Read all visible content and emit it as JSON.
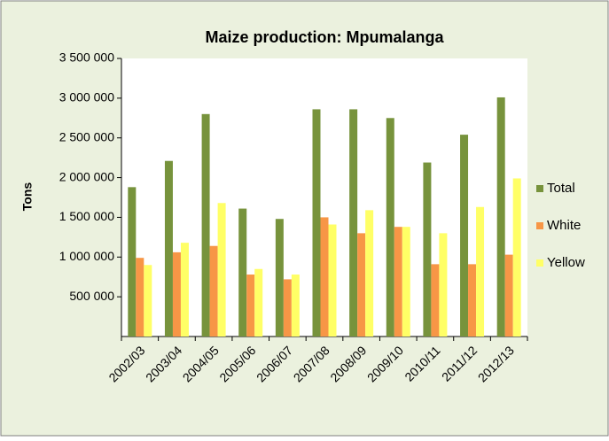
{
  "chart_data": {
    "type": "bar",
    "title": "Maize production: Mpumalanga",
    "y_label": "Tons",
    "categories": [
      "2002/03",
      "2003/04",
      "2004/05",
      "2005/06",
      "2006/07",
      "2007/08",
      "2008/09",
      "2009/10",
      "2010/11",
      "2011/12",
      "2012/13"
    ],
    "series": [
      {
        "name": "Total",
        "color": "#77933c",
        "values": [
          1880000,
          2210000,
          2800000,
          1610000,
          1480000,
          2860000,
          2860000,
          2750000,
          2190000,
          2540000,
          3010000
        ]
      },
      {
        "name": "White",
        "color": "#f79646",
        "values": [
          990000,
          1060000,
          1140000,
          780000,
          720000,
          1500000,
          1300000,
          1380000,
          910000,
          910000,
          1030000
        ]
      },
      {
        "name": "Yellow",
        "color": "#ffff66",
        "values": [
          900000,
          1180000,
          1680000,
          850000,
          780000,
          1410000,
          1590000,
          1380000,
          1300000,
          1630000,
          1990000
        ]
      }
    ],
    "ylim": [
      0,
      3500000
    ],
    "yticks": [
      {
        "value": 500000,
        "label": "500 000"
      },
      {
        "value": 1000000,
        "label": "1 000 000"
      },
      {
        "value": 1500000,
        "label": "1 500 000"
      },
      {
        "value": 2000000,
        "label": "2 000 000"
      },
      {
        "value": 2500000,
        "label": "2 500 000"
      },
      {
        "value": 3000000,
        "label": "3 000 000"
      },
      {
        "value": 3500000,
        "label": "3 500 000"
      }
    ],
    "legend": "right",
    "grid": false
  }
}
